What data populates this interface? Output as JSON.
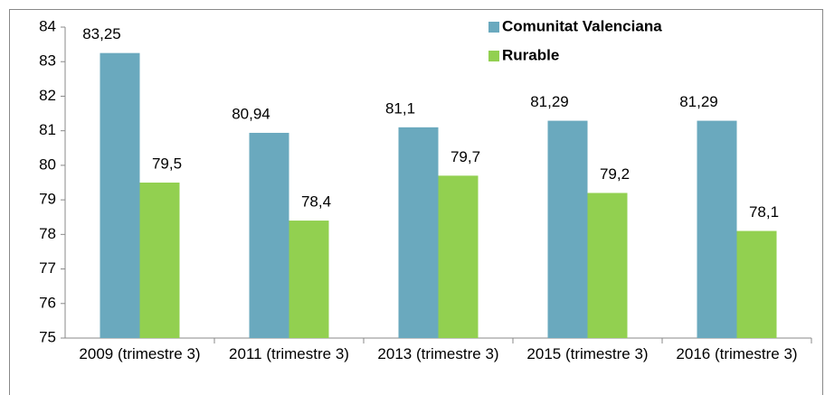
{
  "chart_data": {
    "type": "bar",
    "categories": [
      "2009 (trimestre 3)",
      "2011 (trimestre 3)",
      "2013 (trimestre 3)",
      "2015 (trimestre 3)",
      "2016 (trimestre 3)"
    ],
    "series": [
      {
        "name": "Comunitat Valenciana",
        "color": "#6aa9be",
        "values": [
          83.25,
          80.94,
          81.1,
          81.29,
          81.29
        ],
        "value_labels": [
          "83,25",
          "80,94",
          "81,1",
          "81,29",
          "81,29"
        ]
      },
      {
        "name": "Rurable",
        "color": "#92d050",
        "values": [
          79.5,
          78.4,
          79.7,
          79.2,
          78.1
        ],
        "value_labels": [
          "79,5",
          "78,4",
          "79,7",
          "79,2",
          "78,1"
        ]
      }
    ],
    "ylim": [
      75,
      84
    ],
    "yticks": [
      75,
      76,
      77,
      78,
      79,
      80,
      81,
      82,
      83,
      84
    ],
    "legend": "top-right"
  }
}
